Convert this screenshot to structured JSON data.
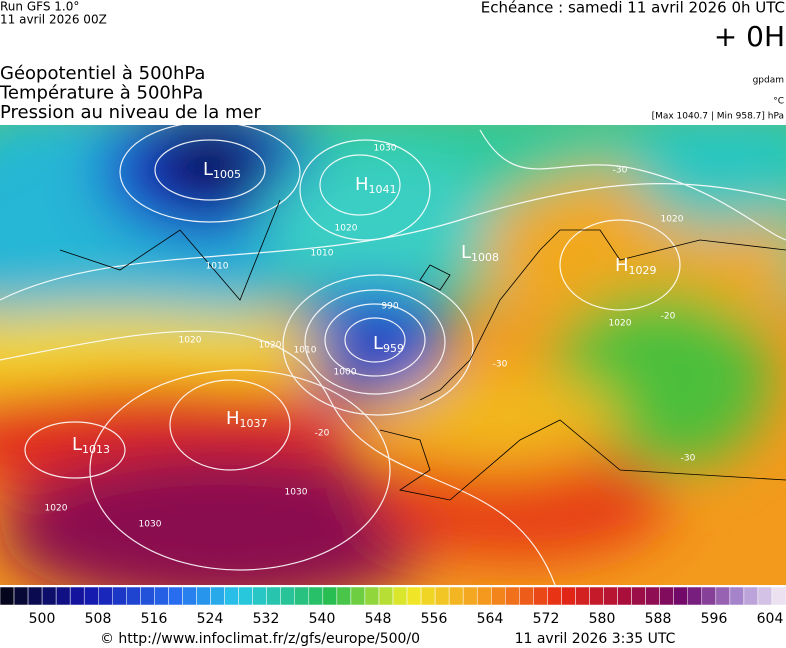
{
  "header": {
    "run": "Run GFS 1.0°",
    "date": "11 avril 2026 00Z",
    "echeance": "Echéance : samedi 11 avril 2026 0h UTC",
    "step": "+ 0H",
    "titles": [
      "Géopotentiel à 500hPa",
      "Température à 500hPa",
      "Pression au niveau de la mer"
    ],
    "unit_geo": "gpdam",
    "unit_temp": "°C",
    "range": "[Max 1040.7 | Min 958.7] hPa"
  },
  "centers": [
    {
      "letter": "L",
      "value": "1005"
    },
    {
      "letter": "H",
      "value": "1041"
    },
    {
      "letter": "L",
      "value": "1008"
    },
    {
      "letter": "L",
      "value": "959"
    },
    {
      "letter": "H",
      "value": "1029"
    },
    {
      "letter": "H",
      "value": "1037"
    },
    {
      "letter": "L",
      "value": "1013"
    }
  ],
  "isolines": [
    "1030",
    "1020",
    "1010",
    "1010",
    "1020",
    "1020",
    "1010",
    "1000",
    "990",
    "1020",
    "1020",
    "1030",
    "1030",
    "1020",
    "-30",
    "-20",
    "-30",
    "-30",
    "-20"
  ],
  "colorbar": {
    "ticks": [
      500,
      508,
      516,
      524,
      532,
      540,
      548,
      556,
      564,
      572,
      580,
      588,
      596,
      604
    ]
  },
  "footer": {
    "source": "© http://www.infoclimat.fr/z/gfs/europe/500/0",
    "generated": "11 avril 2026  3:35 UTC"
  }
}
